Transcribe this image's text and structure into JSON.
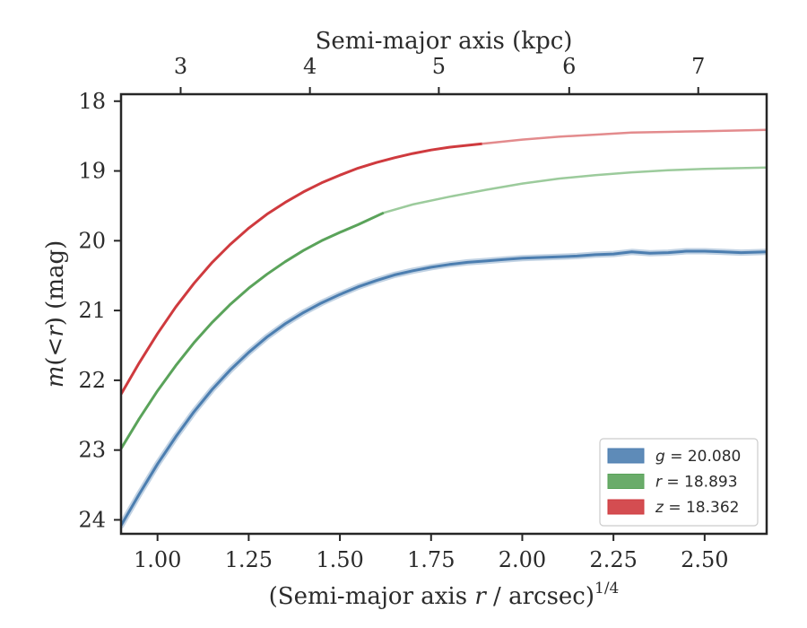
{
  "chart_data": {
    "type": "line",
    "xlabel": {
      "prefix": "(Semi-major axis ",
      "var": "r",
      "suffix": " / arcsec)",
      "power": "1/4"
    },
    "ylabel": {
      "func": "m",
      "open": "(<",
      "var": "r",
      "close": ")",
      "unit": " (mag)"
    },
    "top_xlabel": "Semi-major axis (kpc)",
    "xlim": [
      0.9,
      2.67
    ],
    "ylim": [
      24.2,
      17.9
    ],
    "y_inverted": true,
    "x_ticks": [
      1.0,
      1.25,
      1.5,
      1.75,
      2.0,
      2.25,
      2.5
    ],
    "x_tick_labels": [
      "1.00",
      "1.25",
      "1.50",
      "1.75",
      "2.00",
      "2.25",
      "2.50"
    ],
    "y_ticks": [
      18,
      19,
      20,
      21,
      22,
      23,
      24
    ],
    "y_tick_labels": [
      "18",
      "19",
      "20",
      "21",
      "22",
      "23",
      "24"
    ],
    "top_ticks_kpc": [
      3,
      4,
      5,
      6,
      7
    ],
    "top_tick_labels": [
      "3",
      "4",
      "5",
      "6",
      "7"
    ],
    "top_tick_x_positions": [
      1.0634,
      1.4178,
      1.7712,
      2.1287,
      2.4825
    ],
    "grid": false,
    "legend_position": "lower-right",
    "series": [
      {
        "name": "g",
        "label_value": "20.080",
        "color": "#4c7eb0",
        "band": true,
        "x": [
          0.9,
          0.95,
          1.0,
          1.05,
          1.1,
          1.15,
          1.2,
          1.25,
          1.3,
          1.35,
          1.4,
          1.45,
          1.5,
          1.55,
          1.6,
          1.65,
          1.7,
          1.75,
          1.8,
          1.85,
          1.9,
          1.95,
          2.0,
          2.05,
          2.1,
          2.15,
          2.2,
          2.25,
          2.3,
          2.35,
          2.4,
          2.45,
          2.5,
          2.55,
          2.6,
          2.67
        ],
        "y": [
          24.08,
          23.63,
          23.2,
          22.81,
          22.45,
          22.13,
          21.85,
          21.6,
          21.38,
          21.19,
          21.03,
          20.89,
          20.77,
          20.66,
          20.57,
          20.49,
          20.43,
          20.38,
          20.34,
          20.31,
          20.29,
          20.27,
          20.25,
          20.24,
          20.23,
          20.22,
          20.2,
          20.19,
          20.16,
          20.18,
          20.17,
          20.15,
          20.15,
          20.16,
          20.17,
          20.16
        ]
      },
      {
        "name": "r",
        "label_value": "18.893",
        "color": "#5aa35a",
        "faded_color": "#9ccb9c",
        "solid_until_x": 1.62,
        "x": [
          0.9,
          0.95,
          1.0,
          1.05,
          1.1,
          1.15,
          1.2,
          1.25,
          1.3,
          1.35,
          1.4,
          1.45,
          1.5,
          1.55,
          1.62,
          1.7,
          1.8,
          1.9,
          2.0,
          2.1,
          2.2,
          2.3,
          2.4,
          2.5,
          2.6,
          2.67
        ],
        "y": [
          22.98,
          22.55,
          22.15,
          21.79,
          21.46,
          21.17,
          20.91,
          20.68,
          20.48,
          20.3,
          20.14,
          20.0,
          19.88,
          19.77,
          19.6,
          19.48,
          19.37,
          19.27,
          19.18,
          19.11,
          19.06,
          19.02,
          18.99,
          18.97,
          18.96,
          18.95
        ]
      },
      {
        "name": "z",
        "label_value": "18.362",
        "color": "#cf3a3e",
        "faded_color": "#e38b8d",
        "solid_until_x": 1.89,
        "x": [
          0.9,
          0.95,
          1.0,
          1.05,
          1.1,
          1.15,
          1.2,
          1.25,
          1.3,
          1.35,
          1.4,
          1.45,
          1.5,
          1.55,
          1.6,
          1.65,
          1.7,
          1.75,
          1.8,
          1.89,
          2.0,
          2.1,
          2.2,
          2.3,
          2.4,
          2.5,
          2.6,
          2.67
        ],
        "y": [
          22.2,
          21.75,
          21.33,
          20.95,
          20.61,
          20.31,
          20.05,
          19.82,
          19.62,
          19.45,
          19.3,
          19.17,
          19.06,
          18.96,
          18.88,
          18.81,
          18.75,
          18.7,
          18.66,
          18.61,
          18.55,
          18.51,
          18.48,
          18.45,
          18.44,
          18.43,
          18.42,
          18.41
        ]
      }
    ]
  }
}
